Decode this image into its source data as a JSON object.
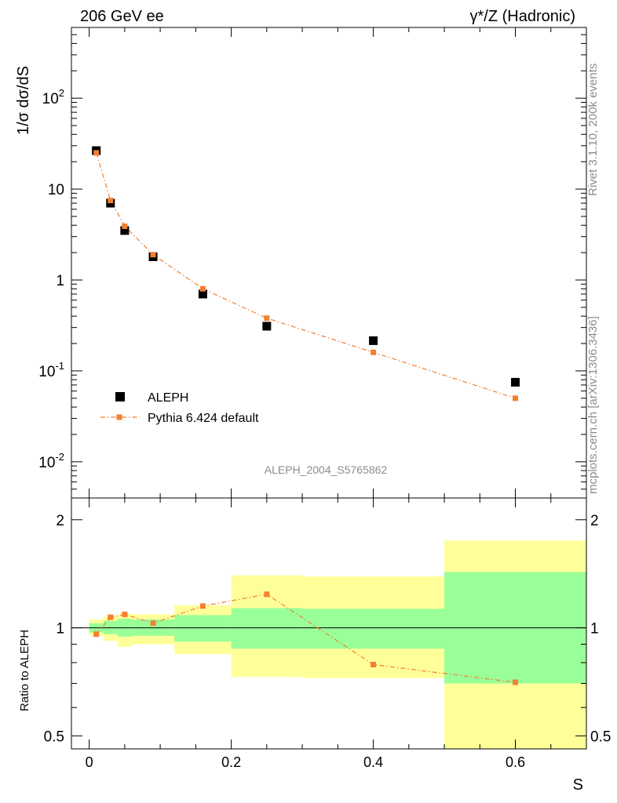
{
  "header": {
    "left": "206 GeV ee",
    "right": "γ*/Z (Hadronic)"
  },
  "side_labels": {
    "rivet": "Rivet 3.1.10,  200k events",
    "mcplots": "mcplots.cern.ch [arXiv:1306.3436]"
  },
  "colors": {
    "data_marker": "#000000",
    "mc_line": "#f47f30",
    "band_outer": "#ffff99",
    "band_inner": "#99ff99",
    "watermark": "#8c8c8c"
  },
  "chart_data": [
    {
      "type": "scatter",
      "panel": "main",
      "ylabel": "1/σ  dσ/dS",
      "yscale": "log",
      "ylim": [
        0.004,
        600
      ],
      "xlim": [
        -0.025,
        0.7
      ],
      "ytick_labels": [
        "10^-2",
        "10^-1",
        "1",
        "10",
        "10^2"
      ],
      "analysis_label": "ALEPH_2004_S5765862",
      "legend_position": "lower-left",
      "series": [
        {
          "name": "ALEPH",
          "marker": "square",
          "x": [
            0.01,
            0.03,
            0.05,
            0.09,
            0.16,
            0.25,
            0.4,
            0.6
          ],
          "y": [
            26.5,
            7.0,
            3.5,
            1.8,
            0.7,
            0.31,
            0.215,
            0.075
          ]
        },
        {
          "name": "Pythia 6.424 default",
          "marker": "small-square",
          "line": "dash-dot",
          "x": [
            0.01,
            0.03,
            0.05,
            0.09,
            0.16,
            0.25,
            0.4,
            0.6
          ],
          "y": [
            25.0,
            7.5,
            3.9,
            1.9,
            0.8,
            0.38,
            0.16,
            0.05
          ]
        }
      ]
    },
    {
      "type": "line",
      "panel": "ratio",
      "xlabel": "S",
      "ylabel": "Ratio to ALEPH",
      "yscale": "log",
      "ylim": [
        0.46,
        2.3
      ],
      "xlim": [
        -0.025,
        0.7
      ],
      "xtick_labels": [
        "0",
        "0.2",
        "0.4",
        "0.6"
      ],
      "ytick_labels": [
        "0.5",
        "1",
        "2"
      ],
      "reference_line": 1.0,
      "bins": [
        {
          "lo": 0.0,
          "hi": 0.02,
          "inner": [
            0.97,
            1.03
          ],
          "outer": [
            0.95,
            1.055
          ]
        },
        {
          "lo": 0.02,
          "hi": 0.04,
          "inner": [
            0.96,
            1.045
          ],
          "outer": [
            0.92,
            1.075
          ]
        },
        {
          "lo": 0.04,
          "hi": 0.06,
          "inner": [
            0.945,
            1.06
          ],
          "outer": [
            0.885,
            1.095
          ]
        },
        {
          "lo": 0.06,
          "hi": 0.12,
          "inner": [
            0.95,
            1.055
          ],
          "outer": [
            0.9,
            1.09
          ]
        },
        {
          "lo": 0.12,
          "hi": 0.2,
          "inner": [
            0.915,
            1.085
          ],
          "outer": [
            0.845,
            1.155
          ]
        },
        {
          "lo": 0.2,
          "hi": 0.3,
          "inner": [
            0.875,
            1.135
          ],
          "outer": [
            0.73,
            1.4
          ]
        },
        {
          "lo": 0.3,
          "hi": 0.5,
          "inner": [
            0.875,
            1.13
          ],
          "outer": [
            0.725,
            1.39
          ]
        },
        {
          "lo": 0.5,
          "hi": 0.7,
          "inner": [
            0.7,
            1.43
          ],
          "outer": [
            0.46,
            1.75
          ]
        }
      ],
      "series": [
        {
          "name": "Pythia 6.424 default",
          "x": [
            0.01,
            0.03,
            0.05,
            0.09,
            0.16,
            0.25,
            0.4,
            0.6
          ],
          "y": [
            0.96,
            1.07,
            1.09,
            1.03,
            1.15,
            1.24,
            0.79,
            0.705
          ]
        }
      ]
    }
  ]
}
